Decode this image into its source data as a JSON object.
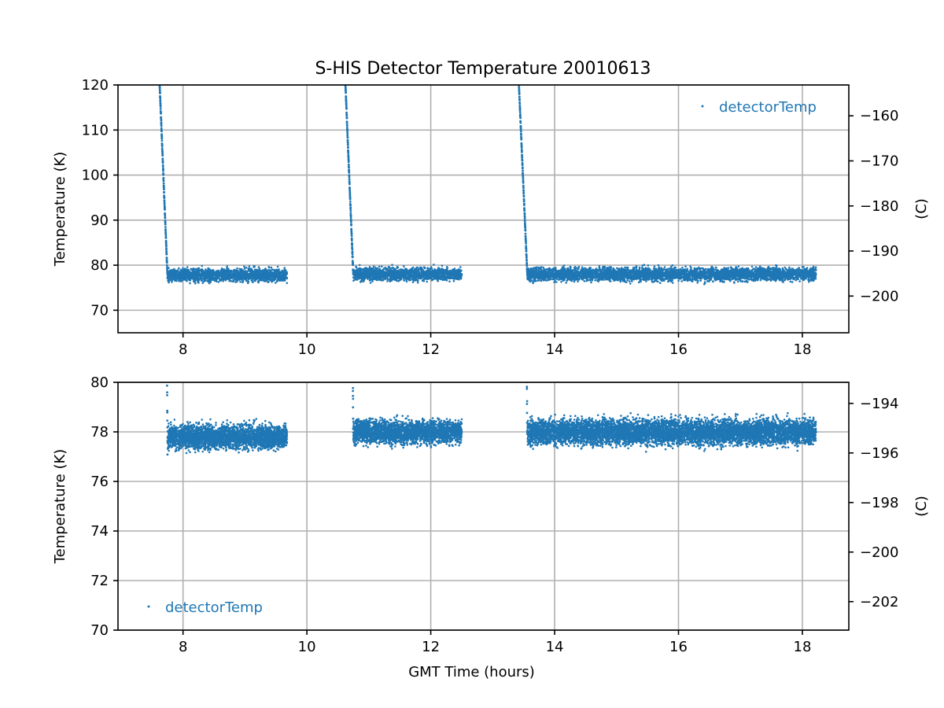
{
  "figure_title": "S-HIS Detector Temperature 20010613",
  "colors": {
    "series": "#1f77b4",
    "grid": "#b0b0b0"
  },
  "chart_data": [
    {
      "type": "scatter",
      "title": "S-HIS Detector Temperature 20010613",
      "xlabel": "",
      "ylabel": "Temperature (K)",
      "ylabel_right": "(C)",
      "xlim": [
        6.95,
        18.75
      ],
      "ylim": [
        65,
        120
      ],
      "ylim_right_celsius": [
        -208.15,
        -153.15
      ],
      "xticks": [
        "8",
        "10",
        "12",
        "14",
        "16",
        "18"
      ],
      "yticks": [
        "70",
        "80",
        "90",
        "100",
        "110",
        "120"
      ],
      "yticks_right": [
        "−200",
        "−190",
        "−180",
        "−170",
        "−160"
      ],
      "grid": true,
      "legend_position": "upper right",
      "series": [
        {
          "name": "detectorTemp",
          "color": "#1f77b4",
          "segments": [
            {
              "x_start": 7.62,
              "x_plateau": 7.75,
              "x_end": 9.68,
              "y_start": 121,
              "y_mean": 77.8,
              "y_spread": 2.2
            },
            {
              "x_start": 10.62,
              "x_plateau": 10.75,
              "x_end": 12.5,
              "y_start": 121,
              "y_mean": 78.0,
              "y_spread": 2.2
            },
            {
              "x_start": 13.42,
              "x_plateau": 13.56,
              "x_end": 18.22,
              "y_start": 121,
              "y_mean": 78.0,
              "y_spread": 2.3
            }
          ]
        }
      ]
    },
    {
      "type": "scatter",
      "title": "",
      "xlabel": "GMT Time (hours)",
      "ylabel": "Temperature (K)",
      "ylabel_right": "(C)",
      "xlim": [
        6.95,
        18.75
      ],
      "ylim": [
        70,
        80
      ],
      "ylim_right_celsius": [
        -203.15,
        -193.15
      ],
      "xticks": [
        "8",
        "10",
        "12",
        "14",
        "16",
        "18"
      ],
      "yticks": [
        "70",
        "72",
        "74",
        "76",
        "78",
        "80"
      ],
      "yticks_right": [
        "−202",
        "−200",
        "−198",
        "−196",
        "−194"
      ],
      "grid": true,
      "legend_position": "lower left",
      "series": [
        {
          "name": "detectorTemp",
          "color": "#1f77b4",
          "segments": [
            {
              "x_start": 7.62,
              "x_plateau": 7.75,
              "x_end": 9.68,
              "y_start": 121,
              "y_mean": 77.8,
              "y_spread": 0.75
            },
            {
              "x_start": 10.62,
              "x_plateau": 10.75,
              "x_end": 12.5,
              "y_start": 121,
              "y_mean": 78.0,
              "y_spread": 0.75
            },
            {
              "x_start": 13.42,
              "x_plateau": 13.56,
              "x_end": 18.22,
              "y_start": 121,
              "y_mean": 78.0,
              "y_spread": 0.8
            }
          ]
        }
      ]
    }
  ]
}
